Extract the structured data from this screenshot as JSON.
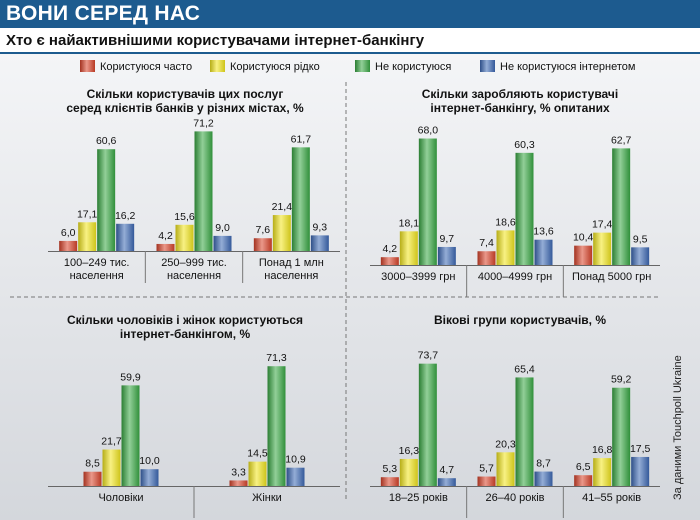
{
  "header": {
    "title": "ВОНИ СЕРЕД НАС",
    "subtitle": "Хто є найактивнішими користувачами інтернет-банкінгу"
  },
  "source": "За даними Touchpoll Ukraine",
  "legend": [
    {
      "label": "Користуюся часто",
      "color": "#d9432a"
    },
    {
      "label": "Користуюся рідко",
      "color": "#f2e61e"
    },
    {
      "label": "Не користуюся",
      "color": "#39a844"
    },
    {
      "label": "Не користуюся інтернетом",
      "color": "#3d69b5"
    }
  ],
  "chart_data": [
    {
      "type": "bar",
      "title": [
        "Скільки користувачів цих послуг",
        "серед клієнтів банків у різних містах, %"
      ],
      "categories": [
        [
          "100–249 тис.",
          "населення"
        ],
        [
          "250–999 тис.",
          "населення"
        ],
        [
          "Понад 1 млн",
          "населення"
        ]
      ],
      "series": [
        {
          "name": "Користуюся часто",
          "values": [
            6.0,
            4.2,
            7.6
          ],
          "labels": [
            "6,0",
            "4,2",
            "7,6"
          ]
        },
        {
          "name": "Користуюся рідко",
          "values": [
            17.1,
            15.6,
            21.4
          ],
          "labels": [
            "17,1",
            "15,6",
            "21,4"
          ]
        },
        {
          "name": "Не користуюся",
          "values": [
            60.6,
            71.2,
            61.7
          ],
          "labels": [
            "60,6",
            "71,2",
            "61,7"
          ]
        },
        {
          "name": "Не користуюся інтернетом",
          "values": [
            16.2,
            9.0,
            9.3
          ],
          "labels": [
            "16,2",
            "9,0",
            "9,3"
          ]
        }
      ]
    },
    {
      "type": "bar",
      "title": [
        "Скільки заробляють користувачі",
        "інтернет-банкінгу, % опитаних"
      ],
      "categories": [
        [
          "3000–3999 грн"
        ],
        [
          "4000–4999 грн"
        ],
        [
          "Понад 5000 грн"
        ]
      ],
      "series": [
        {
          "name": "Користуюся часто",
          "values": [
            4.2,
            7.4,
            10.4
          ],
          "labels": [
            "4,2",
            "7,4",
            "10,4"
          ]
        },
        {
          "name": "Користуюся рідко",
          "values": [
            18.1,
            18.6,
            17.4
          ],
          "labels": [
            "18,1",
            "18,6",
            "17,4"
          ]
        },
        {
          "name": "Не користуюся",
          "values": [
            68.0,
            60.3,
            62.7
          ],
          "labels": [
            "68,0",
            "60,3",
            "62,7"
          ]
        },
        {
          "name": "Не користуюся інтернетом",
          "values": [
            9.7,
            13.6,
            9.5
          ],
          "labels": [
            "9,7",
            "13,6",
            "9,5"
          ]
        }
      ]
    },
    {
      "type": "bar",
      "title": [
        "Скільки чоловіків і жінок користуються",
        "інтернет-банкінгом, %"
      ],
      "categories": [
        [
          "Чоловіки"
        ],
        [
          "Жінки"
        ]
      ],
      "series": [
        {
          "name": "Користуюся часто",
          "values": [
            8.5,
            3.3
          ],
          "labels": [
            "8,5",
            "3,3"
          ]
        },
        {
          "name": "Користуюся рідко",
          "values": [
            21.7,
            14.5
          ],
          "labels": [
            "21,7",
            "14,5"
          ]
        },
        {
          "name": "Не користуюся",
          "values": [
            59.9,
            71.3
          ],
          "labels": [
            "59,9",
            "71,3"
          ]
        },
        {
          "name": "Не користуюся інтернетом",
          "values": [
            10.0,
            10.9
          ],
          "labels": [
            "10,0",
            "10,9"
          ]
        }
      ]
    },
    {
      "type": "bar",
      "title": [
        "Вікові групи користувачів, %"
      ],
      "categories": [
        [
          "18–25 років"
        ],
        [
          "26–40 років"
        ],
        [
          "41–55 років"
        ]
      ],
      "series": [
        {
          "name": "Користуюся часто",
          "values": [
            5.3,
            5.7,
            6.5
          ],
          "labels": [
            "5,3",
            "5,7",
            "6,5"
          ]
        },
        {
          "name": "Користуюся рідко",
          "values": [
            16.3,
            20.3,
            16.8
          ],
          "labels": [
            "16,3",
            "20,3",
            "16,8"
          ]
        },
        {
          "name": "Не користуюся",
          "values": [
            73.7,
            65.4,
            59.2
          ],
          "labels": [
            "73,7",
            "65,4",
            "59,2"
          ]
        },
        {
          "name": "Не користуюся інтернетом",
          "values": [
            4.7,
            8.7,
            17.5
          ],
          "labels": [
            "4,7",
            "8,7",
            "17,5"
          ]
        }
      ]
    }
  ]
}
